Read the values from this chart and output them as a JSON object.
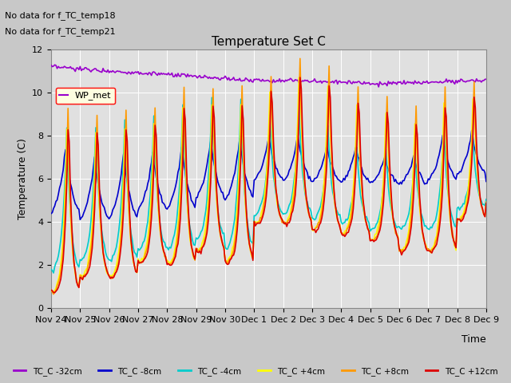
{
  "title": "Temperature Set C",
  "xlabel": "Time",
  "ylabel": "Temperature (C)",
  "ylim": [
    0,
    12
  ],
  "yticks": [
    0,
    2,
    4,
    6,
    8,
    10,
    12
  ],
  "fig_facecolor": "#c8c8c8",
  "plot_facecolor": "#e0e0e0",
  "annotations": [
    "No data for f_TC_temp18",
    "No data for f_TC_temp21"
  ],
  "wp_met_label": "WP_met",
  "legend": [
    {
      "label": "TC_C -32cm",
      "color": "#9900cc",
      "lw": 1.2
    },
    {
      "label": "TC_C -8cm",
      "color": "#0000cc",
      "lw": 1.2
    },
    {
      "label": "TC_C -4cm",
      "color": "#00cccc",
      "lw": 1.2
    },
    {
      "label": "TC_C +4cm",
      "color": "#ffff00",
      "lw": 1.2
    },
    {
      "label": "TC_C +8cm",
      "color": "#ff9900",
      "lw": 1.2
    },
    {
      "label": "TC_C +12cm",
      "color": "#dd0000",
      "lw": 1.2
    }
  ],
  "xtick_labels": [
    "Nov 24",
    "Nov 25",
    "Nov 26",
    "Nov 27",
    "Nov 28",
    "Nov 29",
    "Nov 30",
    "Dec 1",
    "Dec 2",
    "Dec 3",
    "Dec 4",
    "Dec 5",
    "Dec 6",
    "Dec 7",
    "Dec 8",
    "Dec 9"
  ]
}
